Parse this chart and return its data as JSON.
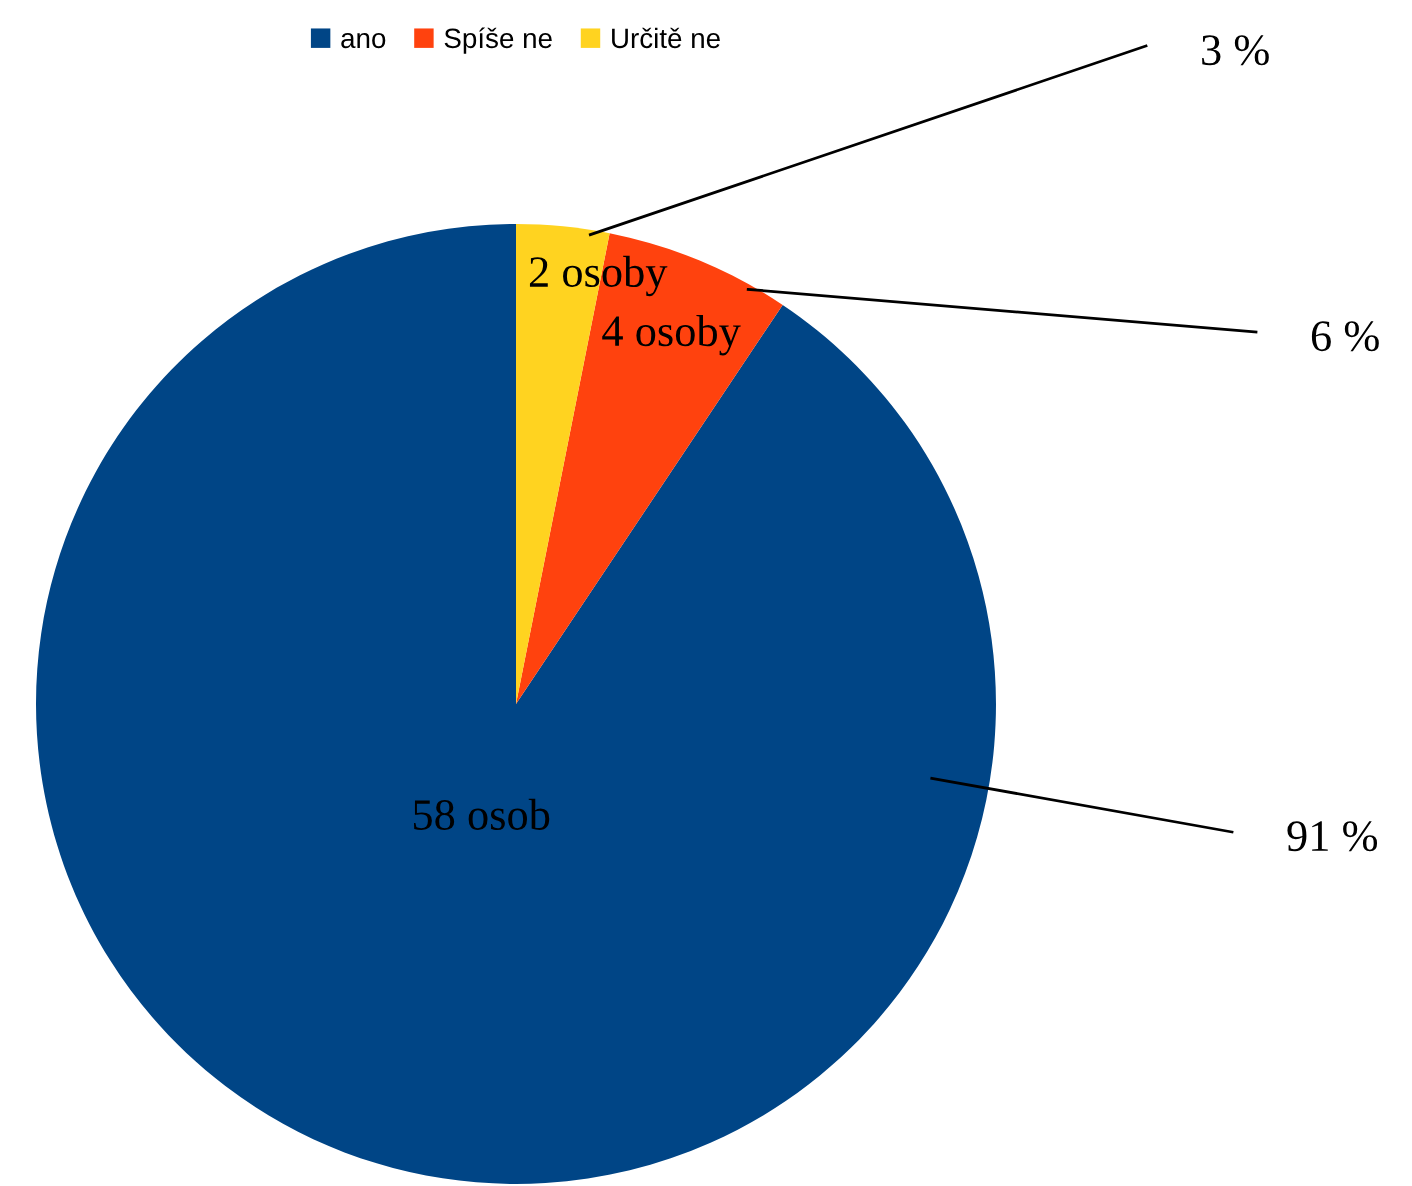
{
  "chart_data": {
    "type": "pie",
    "categories": [
      "ano",
      "Spíše ne",
      "Určitě ne"
    ],
    "values": [
      58,
      4,
      2
    ],
    "colors": [
      "#004586",
      "#ff420e",
      "#ffd320"
    ],
    "value_labels": [
      "58 osob",
      "4 osoby",
      "2 osoby"
    ],
    "annotations": [
      {
        "text": "91 %",
        "x": "ano"
      },
      {
        "text": "6 %",
        "x": "Spíše ne"
      },
      {
        "text": "3 %",
        "x": "Určitě ne"
      }
    ],
    "legend": "top"
  }
}
